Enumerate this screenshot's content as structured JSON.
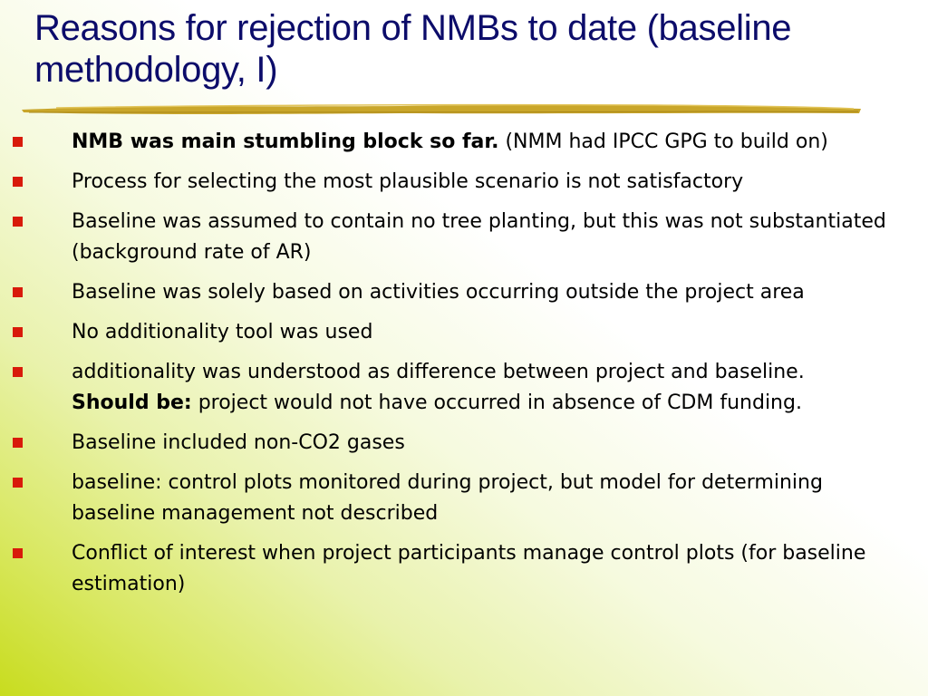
{
  "slide": {
    "title": "Reasons for rejection of NMBs to date (baseline methodology, I)",
    "colors": {
      "title": "#0c0c6a",
      "bullet": "#d81a0a",
      "rule": "#c9a62a",
      "background_accent": "#c8dc1e"
    },
    "bullet_icon": "square-bullet-icon",
    "bullets": [
      {
        "bold": "NMB was main stumbling block so far.",
        "text": " (NMM had IPCC GPG to build on)"
      },
      {
        "text": "Process for selecting the most plausible scenario is not satisfactory"
      },
      {
        "text": "Baseline was assumed to contain no tree planting, but this was not substantiated (background rate of AR)"
      },
      {
        "text": "Baseline was solely based on activities occurring outside the project area"
      },
      {
        "text": "No additionality tool was used"
      },
      {
        "text": "additionality was understood as difference between project and baseline.",
        "bold": "Should be:",
        "after": " project would not have occurred in absence of CDM funding."
      },
      {
        "text": "Baseline included non-CO2 gases"
      },
      {
        "text": "baseline: control plots monitored during project, but model for determining baseline management not described"
      },
      {
        "text": "Conflict of interest when project participants manage control plots (for baseline estimation)"
      }
    ]
  }
}
